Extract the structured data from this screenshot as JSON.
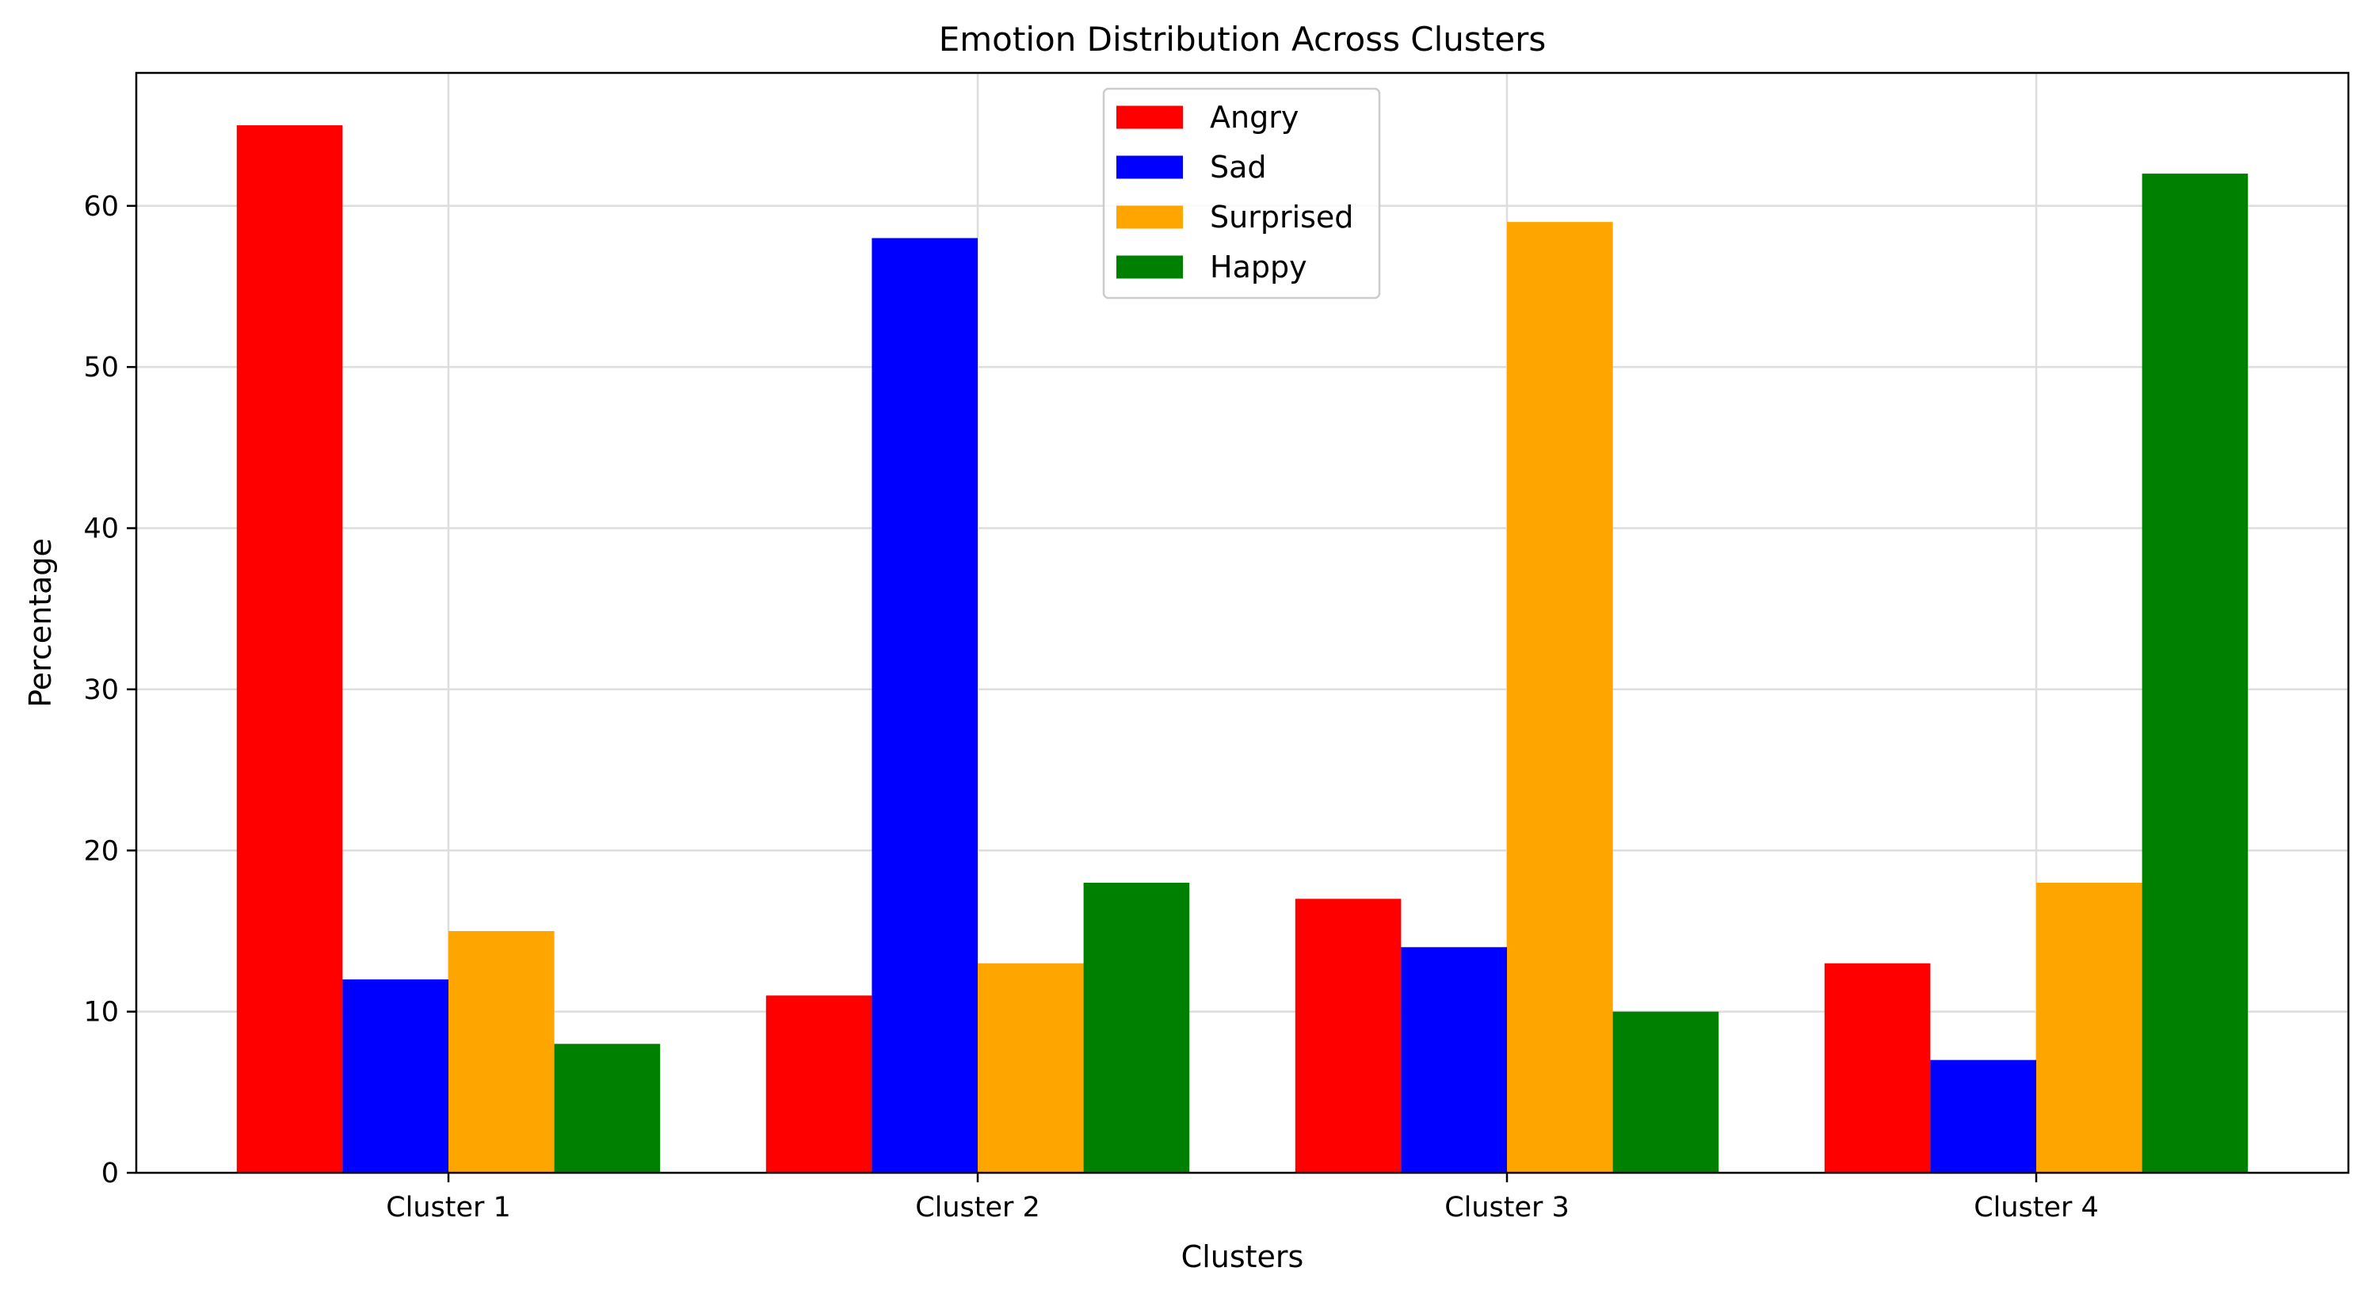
{
  "chart_data": {
    "type": "bar",
    "title": "Emotion Distribution Across Clusters",
    "xlabel": "Clusters",
    "ylabel": "Percentage",
    "categories": [
      "Cluster 1",
      "Cluster 2",
      "Cluster 3",
      "Cluster 4"
    ],
    "series": [
      {
        "name": "Angry",
        "color": "#ff0000",
        "values": [
          65,
          11,
          17,
          13
        ]
      },
      {
        "name": "Sad",
        "color": "#0000ff",
        "values": [
          12,
          58,
          14,
          7
        ]
      },
      {
        "name": "Surprised",
        "color": "#ffa500",
        "values": [
          15,
          13,
          59,
          18
        ]
      },
      {
        "name": "Happy",
        "color": "#008000",
        "values": [
          8,
          18,
          10,
          62
        ]
      }
    ],
    "ylim": [
      0,
      68.25
    ],
    "yticks": [
      0,
      10,
      20,
      30,
      40,
      50,
      60
    ],
    "grid": true,
    "legend_position": "top-center"
  }
}
